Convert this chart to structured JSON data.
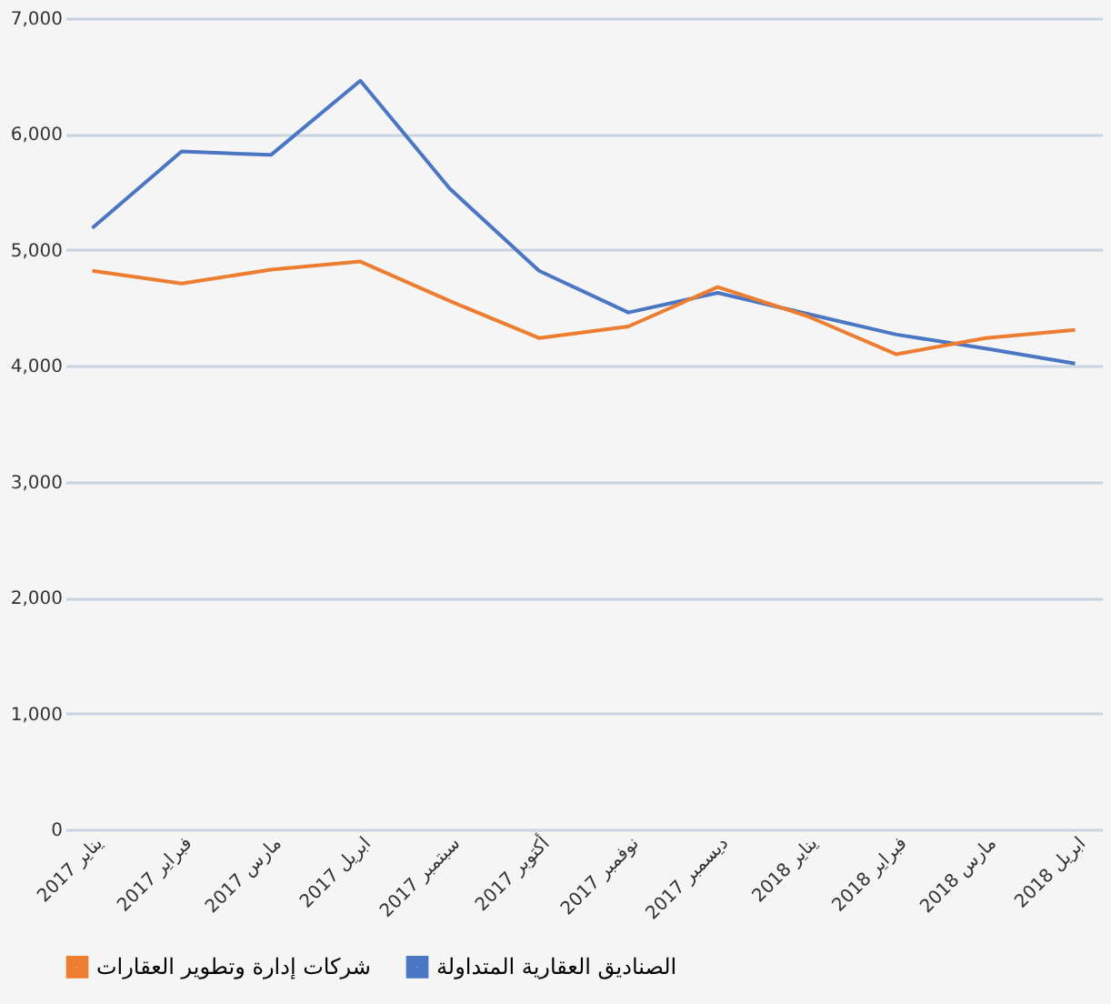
{
  "chart_data": {
    "type": "line",
    "categories": [
      "يناير 2017",
      "فبراير 2017",
      "مارس 2017",
      "ابريل 2017",
      "سبتمبر 2017",
      "أكتوبر 2017",
      "نوفمبر 2017",
      "ديسمبر 2017",
      "يناير 2018",
      "فبراير 2018",
      "مارس 2018",
      "ابريل 2018"
    ],
    "series": [
      {
        "name": "الصناديق العقارية المتداولة",
        "color": "#4a76c4",
        "values": [
          5190,
          5850,
          5820,
          6460,
          5530,
          4820,
          4460,
          4630,
          4450,
          4270,
          4150,
          4020
        ]
      },
      {
        "name": "شركات إدارة وتطوير العقارات",
        "color": "#ed7d31",
        "values": [
          4820,
          4710,
          4830,
          4900,
          4560,
          4240,
          4340,
          4680,
          4430,
          4100,
          4240,
          4310
        ]
      }
    ],
    "ylim": [
      0,
      7000
    ],
    "yticks": [
      {
        "value": 0,
        "label": "0"
      },
      {
        "value": 1000,
        "label": "1,000"
      },
      {
        "value": 2000,
        "label": "2,000"
      },
      {
        "value": 3000,
        "label": "3,000"
      },
      {
        "value": 4000,
        "label": "4,000"
      },
      {
        "value": 5000,
        "label": "5,000"
      },
      {
        "value": 6000,
        "label": "6,000"
      },
      {
        "value": 7000,
        "label": "7,000"
      }
    ],
    "grid": "y",
    "legend": "bottom",
    "marker": "none",
    "line_style": "solid"
  }
}
